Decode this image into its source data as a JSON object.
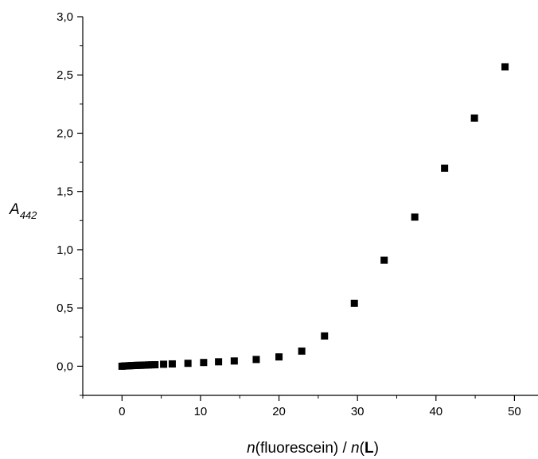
{
  "chart_data": {
    "type": "scatter",
    "xlabel": {
      "italic_prefix": "n",
      "middle": "(fluorescein) / ",
      "italic_second": "n",
      "bold": "L",
      "suffix": ")",
      "open_paren": "("
    },
    "ylabel": {
      "main": "A",
      "subscript": "442"
    },
    "xlim": [
      -5,
      53
    ],
    "ylim": [
      -0.25,
      3.0
    ],
    "x_ticks": [
      0,
      10,
      20,
      30,
      40,
      50
    ],
    "x_tick_labels": [
      "0",
      "10",
      "20",
      "30",
      "40",
      "50"
    ],
    "y_ticks": [
      0.0,
      0.5,
      1.0,
      1.5,
      2.0,
      2.5,
      3.0
    ],
    "y_tick_labels": [
      "0,0",
      "0,5",
      "1,0",
      "1,5",
      "2,0",
      "2,5",
      "3,0"
    ],
    "grid": false,
    "marker": "square",
    "marker_color": "#000000",
    "series": [
      {
        "x": [
          0,
          0.3,
          0.6,
          0.9,
          1.2,
          1.5,
          1.8,
          2.1,
          2.4,
          2.7,
          3.0,
          3.4,
          3.8,
          4.2,
          5.3,
          6.4,
          8.4,
          10.4,
          12.3,
          14.3,
          17.1,
          20.0,
          22.9,
          25.8,
          29.6,
          33.4,
          37.3,
          41.1,
          44.9,
          48.8
        ],
        "y": [
          0.0,
          0.002,
          0.003,
          0.004,
          0.005,
          0.006,
          0.007,
          0.008,
          0.008,
          0.009,
          0.01,
          0.011,
          0.012,
          0.013,
          0.017,
          0.02,
          0.025,
          0.032,
          0.038,
          0.045,
          0.058,
          0.08,
          0.13,
          0.26,
          0.54,
          0.91,
          1.28,
          1.7,
          2.13,
          2.57
        ]
      }
    ]
  }
}
